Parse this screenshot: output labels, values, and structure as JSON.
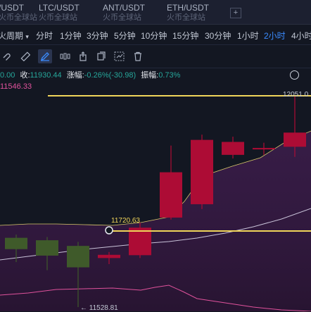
{
  "tabs": [
    {
      "pair": "/USDT",
      "source": "火币全球站"
    },
    {
      "pair": "LTC/USDT",
      "source": "火币全球站"
    },
    {
      "pair": "ANT/USDT",
      "source": "火币全球站"
    },
    {
      "pair": "ETH/USDT",
      "source": "火币全球站"
    }
  ],
  "add_tab_label": "+",
  "periods": [
    "火周期",
    "分时",
    "1分钟",
    "3分钟",
    "5分钟",
    "10分钟",
    "15分钟",
    "30分钟",
    "1小时",
    "2小时",
    "4小时"
  ],
  "active_period": "2小时",
  "tools": [
    "magnet-icon",
    "ruler-icon",
    "pencil-icon",
    "candlestick-icon",
    "export-icon",
    "copy-icon",
    "template-icon",
    "trash-icon"
  ],
  "info": {
    "open_value": "0.00",
    "close_label": "收:",
    "close_value": "11930.44",
    "change_label": "涨幅:",
    "change_value": "-0.26%(-30.98)",
    "amplitude_label": "振幅:",
    "amplitude_value": "0.73%"
  },
  "ma_value": "11546.33",
  "colors": {
    "up": "#ad0c35",
    "down": "#3f5a2a",
    "line": "#f0d55a",
    "accent": "#3b8cff",
    "ma": "#e0529c",
    "band": "#3a1a4a"
  },
  "chart": {
    "high_label": "12051.0",
    "mid_label": "11720.63",
    "low_label": "← 11528.81",
    "y_max": 12051.0,
    "y_min": 11528.81,
    "candles": [
      {
        "open": 11700,
        "close": 11672,
        "high": 11708,
        "low": 11640,
        "color": "down"
      },
      {
        "open": 11694,
        "close": 11656,
        "high": 11702,
        "low": 11620,
        "color": "down"
      },
      {
        "open": 11680,
        "close": 11627,
        "high": 11690,
        "low": 11528.81,
        "color": "down"
      },
      {
        "open": 11650,
        "close": 11658,
        "high": 11665,
        "low": 11635,
        "color": "up"
      },
      {
        "open": 11657,
        "close": 11725,
        "high": 11738,
        "low": 11650,
        "color": "up"
      },
      {
        "open": 11750,
        "close": 11862,
        "high": 11928,
        "low": 11745,
        "color": "up"
      },
      {
        "open": 11783,
        "close": 11942,
        "high": 11955,
        "low": 11771,
        "color": "up"
      },
      {
        "open": 11905,
        "close": 11937,
        "high": 11950,
        "low": 11896,
        "color": "up"
      },
      {
        "open": 11920,
        "close": 11922,
        "high": 11935,
        "low": 11905,
        "color": "up"
      },
      {
        "open": 11925,
        "close": 11960,
        "high": 12051,
        "low": 11900,
        "color": "up"
      }
    ]
  }
}
